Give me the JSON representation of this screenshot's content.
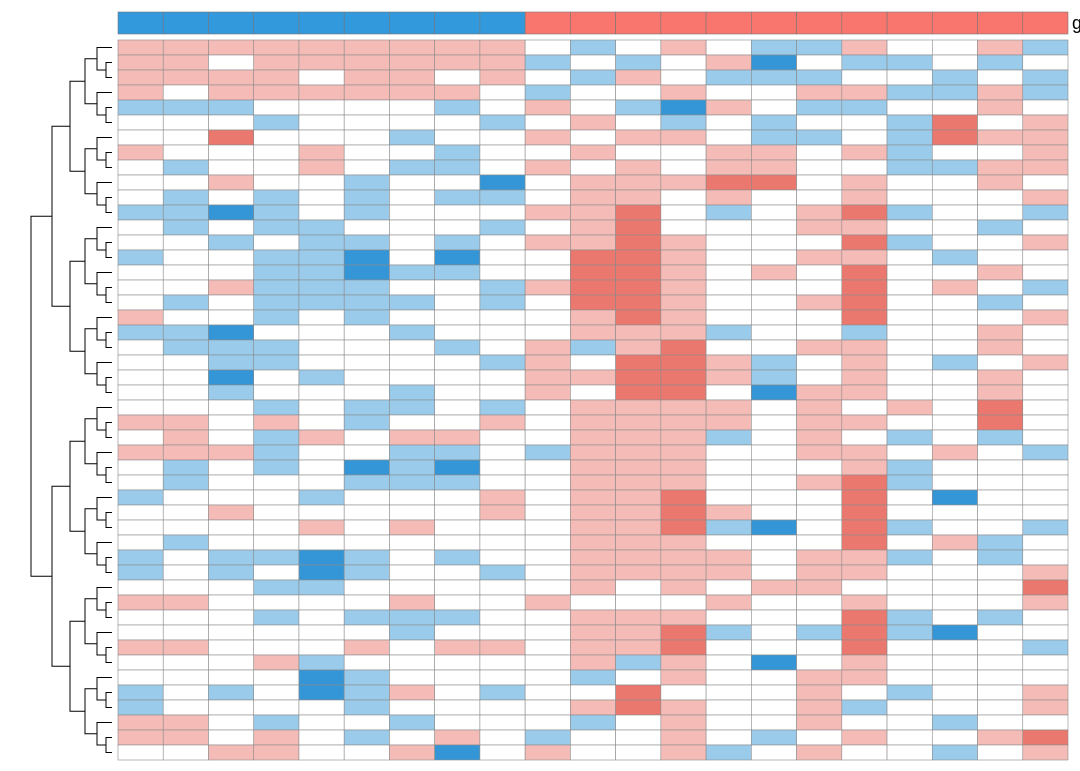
{
  "chart_data": {
    "type": "heatmap",
    "legend_title": "g",
    "group_colors": [
      "#3399dd",
      "#3399dd",
      "#3399dd",
      "#3399dd",
      "#3399dd",
      "#3399dd",
      "#3399dd",
      "#3399dd",
      "#3399dd",
      "#f8766d",
      "#f8766d",
      "#f8766d",
      "#f8766d",
      "#f8766d",
      "#f8766d",
      "#f8766d",
      "#f8766d",
      "#f8766d",
      "#f8766d",
      "#f8766d",
      "#f8766d"
    ],
    "z": [
      [
        1,
        1,
        1,
        1,
        1,
        1,
        1,
        1,
        1,
        0,
        -1,
        0,
        1,
        0,
        -1,
        -1,
        1,
        0,
        0,
        1,
        -1
      ],
      [
        1,
        1,
        0,
        1,
        1,
        1,
        1,
        1,
        1,
        -1,
        0,
        -1,
        0,
        1,
        -2,
        0,
        -1,
        -1,
        0,
        -1,
        0
      ],
      [
        1,
        1,
        1,
        1,
        0,
        1,
        1,
        0,
        1,
        0,
        -1,
        1,
        0,
        -1,
        -1,
        -1,
        0,
        0,
        -1,
        0,
        -1
      ],
      [
        1,
        0,
        1,
        1,
        1,
        1,
        1,
        1,
        0,
        -1,
        0,
        0,
        1,
        0,
        0,
        1,
        1,
        -1,
        -1,
        1,
        -1
      ],
      [
        -1,
        -1,
        -1,
        0,
        0,
        0,
        0,
        -1,
        0,
        1,
        0,
        -1,
        -2,
        1,
        0,
        -1,
        -1,
        0,
        0,
        1,
        0
      ],
      [
        0,
        0,
        0,
        -1,
        0,
        0,
        0,
        0,
        -1,
        0,
        1,
        0,
        -1,
        0,
        -1,
        0,
        0,
        -1,
        2,
        0,
        1
      ],
      [
        0,
        0,
        2,
        0,
        0,
        0,
        -1,
        0,
        0,
        1,
        0,
        1,
        1,
        0,
        -1,
        -1,
        0,
        -1,
        2,
        1,
        1
      ],
      [
        1,
        0,
        0,
        0,
        1,
        0,
        0,
        -1,
        0,
        0,
        1,
        0,
        0,
        1,
        1,
        0,
        1,
        -1,
        0,
        0,
        1
      ],
      [
        0,
        -1,
        0,
        0,
        1,
        0,
        -1,
        -1,
        0,
        1,
        0,
        1,
        0,
        1,
        1,
        0,
        0,
        -1,
        -1,
        1,
        1
      ],
      [
        0,
        0,
        1,
        0,
        0,
        -1,
        0,
        0,
        -2,
        0,
        1,
        1,
        1,
        2,
        2,
        0,
        1,
        0,
        0,
        1,
        0
      ],
      [
        0,
        -1,
        0,
        -1,
        0,
        -1,
        0,
        -1,
        -1,
        0,
        1,
        1,
        0,
        1,
        0,
        0,
        1,
        0,
        0,
        0,
        1
      ],
      [
        -1,
        -1,
        -2,
        -1,
        0,
        -1,
        0,
        0,
        0,
        1,
        1,
        2,
        0,
        -1,
        0,
        1,
        2,
        -1,
        0,
        0,
        -1
      ],
      [
        0,
        -1,
        0,
        -1,
        -1,
        0,
        0,
        0,
        -1,
        0,
        1,
        2,
        0,
        0,
        0,
        1,
        1,
        0,
        0,
        -1,
        0
      ],
      [
        0,
        0,
        -1,
        0,
        -1,
        -1,
        0,
        -1,
        0,
        1,
        1,
        2,
        1,
        0,
        0,
        0,
        2,
        -1,
        0,
        0,
        1
      ],
      [
        -1,
        0,
        0,
        -1,
        -1,
        -2,
        0,
        -2,
        0,
        0,
        2,
        2,
        1,
        0,
        0,
        1,
        1,
        0,
        -1,
        0,
        0
      ],
      [
        0,
        0,
        0,
        -1,
        -1,
        -2,
        -1,
        -1,
        0,
        0,
        2,
        2,
        1,
        0,
        1,
        0,
        2,
        0,
        0,
        1,
        0
      ],
      [
        0,
        0,
        1,
        -1,
        -1,
        -1,
        0,
        0,
        -1,
        1,
        2,
        2,
        1,
        0,
        0,
        0,
        2,
        0,
        1,
        0,
        -1
      ],
      [
        0,
        -1,
        0,
        -1,
        -1,
        -1,
        -1,
        0,
        -1,
        0,
        2,
        2,
        1,
        0,
        0,
        1,
        2,
        0,
        0,
        -1,
        0
      ],
      [
        1,
        0,
        0,
        -1,
        0,
        -1,
        0,
        0,
        0,
        0,
        1,
        2,
        1,
        0,
        0,
        0,
        2,
        0,
        0,
        0,
        1
      ],
      [
        -1,
        -1,
        -2,
        0,
        0,
        0,
        -1,
        0,
        0,
        0,
        1,
        1,
        1,
        -1,
        0,
        0,
        -1,
        0,
        0,
        1,
        0
      ],
      [
        0,
        -1,
        -1,
        -1,
        0,
        0,
        0,
        -1,
        0,
        1,
        -1,
        1,
        2,
        0,
        0,
        1,
        1,
        0,
        0,
        1,
        0
      ],
      [
        0,
        0,
        -1,
        -1,
        0,
        0,
        0,
        0,
        -1,
        1,
        0,
        2,
        2,
        1,
        -1,
        0,
        1,
        0,
        -1,
        0,
        1
      ],
      [
        0,
        0,
        -2,
        0,
        -1,
        0,
        0,
        0,
        0,
        1,
        1,
        2,
        2,
        1,
        -1,
        0,
        1,
        0,
        0,
        1,
        0
      ],
      [
        0,
        0,
        -1,
        0,
        0,
        0,
        -1,
        0,
        0,
        1,
        0,
        2,
        2,
        0,
        -2,
        1,
        1,
        0,
        0,
        1,
        0
      ],
      [
        0,
        0,
        0,
        -1,
        0,
        -1,
        -1,
        0,
        -1,
        0,
        1,
        1,
        1,
        1,
        0,
        1,
        0,
        1,
        0,
        2,
        0
      ],
      [
        1,
        1,
        0,
        1,
        0,
        -1,
        0,
        0,
        1,
        0,
        1,
        1,
        1,
        1,
        0,
        1,
        1,
        0,
        0,
        2,
        0
      ],
      [
        0,
        1,
        0,
        -1,
        1,
        0,
        1,
        1,
        0,
        0,
        1,
        1,
        1,
        -1,
        0,
        1,
        0,
        -1,
        0,
        -1,
        0
      ],
      [
        1,
        1,
        1,
        -1,
        0,
        0,
        -1,
        -1,
        0,
        -1,
        1,
        1,
        1,
        0,
        0,
        1,
        1,
        0,
        1,
        0,
        -1
      ],
      [
        0,
        -1,
        0,
        -1,
        0,
        -2,
        -1,
        -2,
        0,
        0,
        1,
        1,
        1,
        0,
        0,
        0,
        1,
        -1,
        0,
        0,
        0
      ],
      [
        0,
        -1,
        0,
        0,
        0,
        -1,
        -1,
        -1,
        0,
        0,
        1,
        1,
        1,
        0,
        0,
        1,
        2,
        -1,
        0,
        0,
        0
      ],
      [
        -1,
        0,
        0,
        0,
        -1,
        0,
        0,
        0,
        1,
        0,
        1,
        1,
        2,
        0,
        0,
        0,
        2,
        0,
        -2,
        0,
        0
      ],
      [
        0,
        0,
        1,
        0,
        0,
        0,
        0,
        0,
        1,
        0,
        1,
        1,
        2,
        1,
        0,
        0,
        2,
        0,
        0,
        0,
        0
      ],
      [
        0,
        0,
        0,
        0,
        1,
        0,
        1,
        0,
        0,
        0,
        1,
        1,
        2,
        -1,
        -2,
        0,
        2,
        -1,
        0,
        0,
        -1
      ],
      [
        0,
        -1,
        0,
        0,
        0,
        0,
        0,
        0,
        0,
        0,
        1,
        1,
        1,
        0,
        0,
        0,
        2,
        0,
        1,
        -1,
        0
      ],
      [
        -1,
        0,
        -1,
        -1,
        -2,
        -1,
        0,
        -1,
        0,
        0,
        1,
        1,
        1,
        1,
        0,
        1,
        1,
        -1,
        0,
        -1,
        0
      ],
      [
        -1,
        0,
        -1,
        0,
        -2,
        -1,
        0,
        0,
        -1,
        0,
        1,
        1,
        1,
        1,
        0,
        1,
        1,
        0,
        0,
        0,
        1
      ],
      [
        0,
        0,
        0,
        -1,
        -1,
        0,
        0,
        0,
        0,
        0,
        1,
        0,
        1,
        0,
        1,
        1,
        0,
        0,
        0,
        0,
        2
      ],
      [
        1,
        1,
        0,
        0,
        0,
        0,
        1,
        0,
        0,
        1,
        0,
        0,
        0,
        1,
        0,
        0,
        1,
        0,
        0,
        0,
        1
      ],
      [
        0,
        0,
        0,
        -1,
        0,
        -1,
        -1,
        -1,
        0,
        0,
        1,
        1,
        1,
        0,
        0,
        0,
        2,
        -1,
        0,
        -1,
        0
      ],
      [
        0,
        0,
        0,
        0,
        0,
        0,
        -1,
        0,
        0,
        0,
        1,
        1,
        2,
        -1,
        0,
        -1,
        2,
        -1,
        -2,
        0,
        0
      ],
      [
        1,
        1,
        0,
        0,
        0,
        1,
        0,
        1,
        1,
        0,
        1,
        1,
        2,
        0,
        0,
        0,
        2,
        0,
        0,
        0,
        -1
      ],
      [
        0,
        0,
        0,
        1,
        -1,
        0,
        0,
        0,
        0,
        0,
        1,
        -1,
        1,
        0,
        -2,
        0,
        1,
        0,
        0,
        0,
        0
      ],
      [
        0,
        0,
        0,
        0,
        -2,
        -1,
        0,
        0,
        0,
        0,
        -1,
        0,
        1,
        0,
        0,
        1,
        1,
        0,
        0,
        0,
        0
      ],
      [
        -1,
        0,
        -1,
        0,
        -2,
        -1,
        1,
        0,
        -1,
        0,
        0,
        2,
        0,
        0,
        0,
        1,
        0,
        -1,
        0,
        0,
        1
      ],
      [
        -1,
        0,
        0,
        0,
        0,
        -1,
        0,
        0,
        0,
        0,
        1,
        2,
        1,
        0,
        0,
        1,
        -1,
        0,
        0,
        0,
        1
      ],
      [
        1,
        1,
        0,
        -1,
        0,
        0,
        -1,
        0,
        0,
        0,
        -1,
        0,
        1,
        0,
        0,
        1,
        0,
        0,
        -1,
        0,
        0
      ],
      [
        1,
        1,
        0,
        1,
        0,
        -1,
        0,
        1,
        0,
        -1,
        0,
        0,
        1,
        0,
        -1,
        0,
        1,
        0,
        0,
        1,
        2
      ],
      [
        0,
        0,
        1,
        1,
        0,
        0,
        1,
        -2,
        0,
        1,
        0,
        0,
        1,
        -1,
        0,
        1,
        0,
        0,
        -1,
        0,
        1
      ]
    ]
  }
}
